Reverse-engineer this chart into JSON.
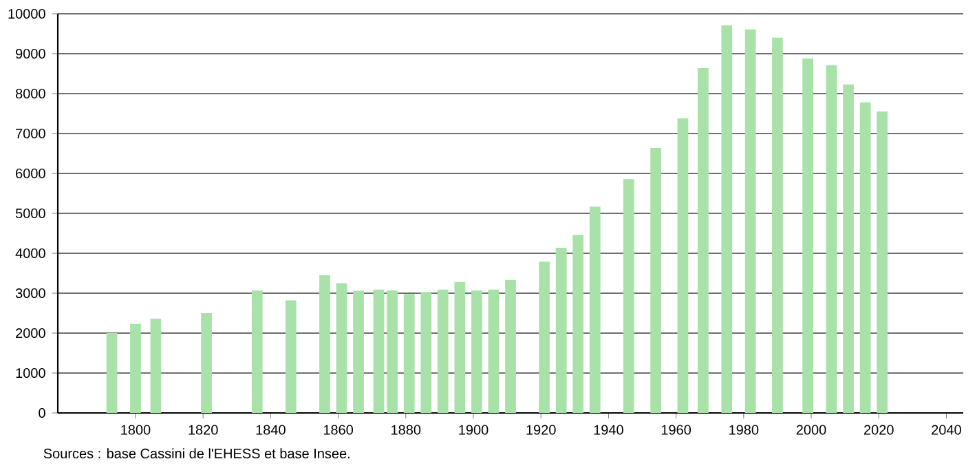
{
  "chart_data": {
    "type": "bar",
    "x": [
      1793,
      1800,
      1806,
      1821,
      1836,
      1846,
      1856,
      1861,
      1866,
      1872,
      1876,
      1881,
      1886,
      1891,
      1896,
      1901,
      1906,
      1911,
      1921,
      1926,
      1931,
      1936,
      1946,
      1954,
      1962,
      1968,
      1975,
      1982,
      1990,
      1999,
      2006,
      2011,
      2016,
      2021
    ],
    "values": [
      2000,
      2230,
      2360,
      2500,
      3070,
      2820,
      3450,
      3250,
      3060,
      3090,
      3070,
      2980,
      3030,
      3090,
      3280,
      3070,
      3090,
      3330,
      3790,
      4140,
      4460,
      5170,
      5860,
      6640,
      7380,
      8640,
      9710,
      9610,
      9400,
      8880,
      8710,
      8230,
      7780,
      7550
    ],
    "color": "#a8e2a8",
    "xlim": [
      1777,
      2045
    ],
    "xticks": [
      1800,
      1820,
      1840,
      1860,
      1880,
      1900,
      1920,
      1940,
      1960,
      1980,
      2000,
      2020,
      2040
    ],
    "ylim": [
      0,
      10000
    ],
    "yticks": [
      0,
      1000,
      2000,
      3000,
      4000,
      5000,
      6000,
      7000,
      8000,
      9000,
      10000
    ],
    "grid": "y",
    "annotations": [
      "Sources : base Cassini de l'EHESS et base Insee."
    ]
  }
}
